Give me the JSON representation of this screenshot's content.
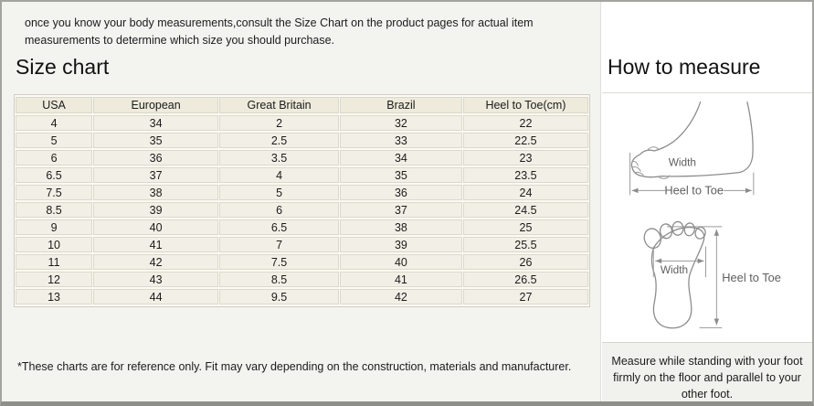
{
  "intro": {
    "text": "once you know your body measurements,consult the Size Chart on the product pages for actual item measurements to determine which size you should purchase."
  },
  "size_chart": {
    "title": "Size chart",
    "columns": [
      "USA",
      "European",
      "Great Britain",
      "Brazil",
      "Heel to Toe(cm)"
    ],
    "rows": [
      [
        "4",
        "34",
        "2",
        "32",
        "22"
      ],
      [
        "5",
        "35",
        "2.5",
        "33",
        "22.5"
      ],
      [
        "6",
        "36",
        "3.5",
        "34",
        "23"
      ],
      [
        "6.5",
        "37",
        "4",
        "35",
        "23.5"
      ],
      [
        "7.5",
        "38",
        "5",
        "36",
        "24"
      ],
      [
        "8.5",
        "39",
        "6",
        "37",
        "24.5"
      ],
      [
        "9",
        "40",
        "6.5",
        "38",
        "25"
      ],
      [
        "10",
        "41",
        "7",
        "39",
        "25.5"
      ],
      [
        "11",
        "42",
        "7.5",
        "40",
        "26"
      ],
      [
        "12",
        "43",
        "8.5",
        "41",
        "26.5"
      ],
      [
        "13",
        "44",
        "9.5",
        "42",
        "27"
      ]
    ],
    "footnote": "*These charts are for reference only. Fit may vary depending on the construction, materials and manufacturer."
  },
  "how_to_measure": {
    "title": "How to measure",
    "side_view": {
      "width_label": "Width",
      "length_label": "Heel to Toe"
    },
    "top_view": {
      "width_label": "Width",
      "length_label": "Heel to Toe"
    },
    "note": "Measure while standing with your foot firmly on the floor and parallel to your other foot."
  },
  "colors": {
    "left_panel_bg": "#f3f3f0",
    "table_cell_bg": "#f2f0e6",
    "table_header_bg": "#eeebdc",
    "table_border": "#d9d7c8",
    "outer_border": "#a3a3a0",
    "diagram_line": "#8c8c8c",
    "note_bg": "#f1f1ee"
  }
}
